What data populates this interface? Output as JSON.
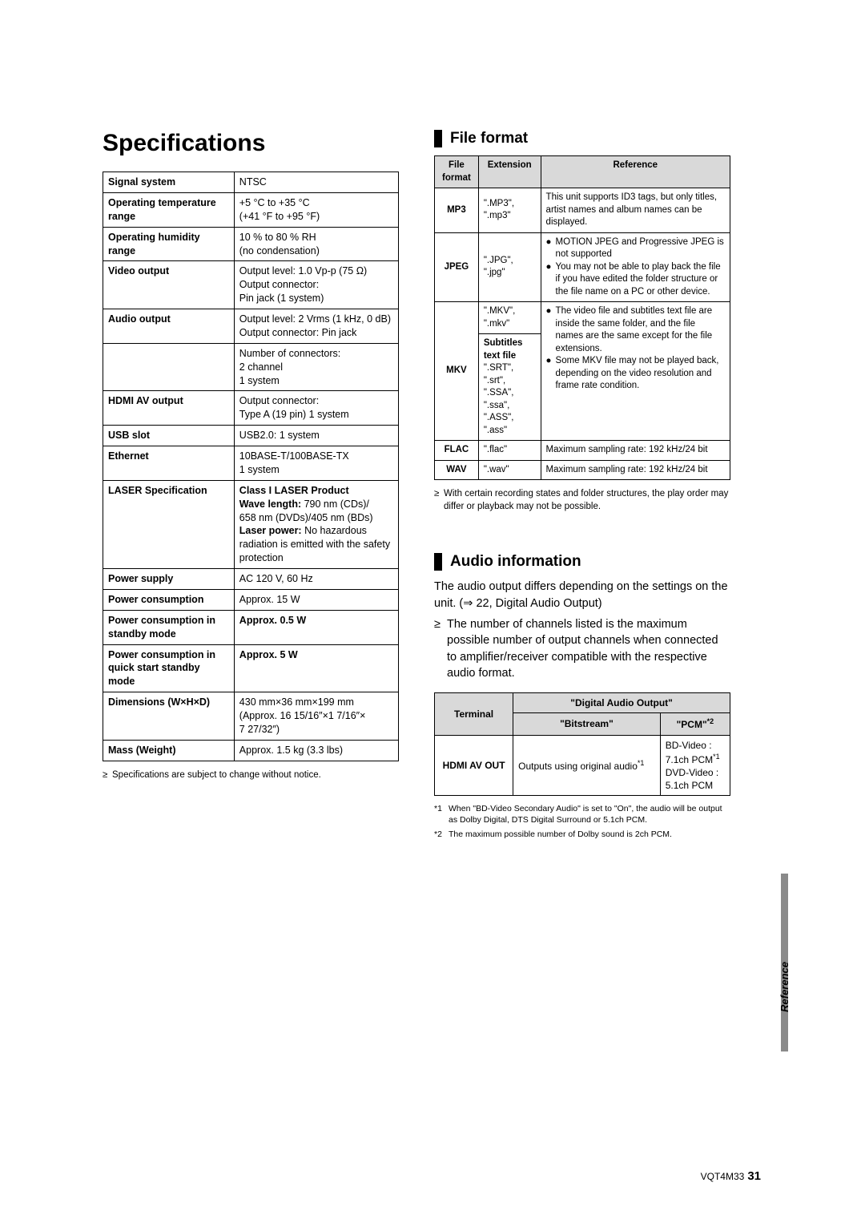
{
  "title": "Specifications",
  "spec_table": {
    "rows": [
      {
        "label": "Signal system",
        "value": "NTSC"
      },
      {
        "label": "Operating temperature range",
        "value": "+5 °C to +35 °C\n(+41 °F to +95 °F)"
      },
      {
        "label": "Operating humidity range",
        "value": "10 % to 80 % RH\n(no condensation)"
      },
      {
        "label": "Video output",
        "value": "Output level: 1.0 Vp-p (75 Ω)\nOutput connector:\nPin jack (1 system)"
      },
      {
        "label": "Audio output",
        "value": "Output level: 2 Vrms (1 kHz, 0 dB)\nOutput connector: Pin jack"
      },
      {
        "label": "",
        "value": "Number of connectors:\n2 channel\n1 system"
      },
      {
        "label": "HDMI AV output",
        "value": "Output connector:\nType A (19 pin) 1 system"
      },
      {
        "label": "USB slot",
        "value": "USB2.0: 1 system"
      },
      {
        "label": "Ethernet",
        "value": "10BASE-T/100BASE-TX\n1 system"
      },
      {
        "label": "LASER Specification",
        "value": "<b>Class I LASER Product</b>\n<b>Wave length:</b> 790 nm (CDs)/\n658 nm (DVDs)/405 nm (BDs)\n<b>Laser power:</b> No hazardous radiation is emitted with the safety protection"
      },
      {
        "label": "Power supply",
        "value": "AC 120 V, 60 Hz"
      },
      {
        "label": "Power consumption",
        "value": "Approx. 15 W"
      },
      {
        "label": "Power consumption in standby mode",
        "value": "<b>Approx. 0.5 W</b>"
      },
      {
        "label": "Power consumption in quick start standby mode",
        "value": "<b>Approx. 5 W</b>"
      },
      {
        "label": "Dimensions (W×H×D)",
        "value": "430 mm×36 mm×199 mm\n(Approx. 16 15/16″×1 7/16″×\n7 27/32″)"
      },
      {
        "label": "Mass (Weight)",
        "value": "Approx. 1.5 kg (3.3 lbs)"
      }
    ],
    "note": "Specifications are subject to change without notice."
  },
  "file_format": {
    "heading": "File format",
    "headers": [
      "File format",
      "Extension",
      "Reference"
    ],
    "rows": [
      {
        "fmt": "MP3",
        "ext": "\".MP3\", \".mp3\"",
        "ref": "This unit supports ID3 tags, but only titles, artist names and album names can be displayed."
      },
      {
        "fmt": "JPEG",
        "ext": "\".JPG\", \".jpg\"",
        "ref_bullets": [
          "MOTION JPEG and Progressive JPEG is not supported",
          "You may not be able to play back the file if you have edited the folder structure or the file name on a PC or other device."
        ]
      },
      {
        "fmt": "MKV",
        "ext1": "\".MKV\", \".mkv\"",
        "ext2": "<b>Subtitles text file</b>\n\".SRT\", \".srt\",\n\".SSA\", \".ssa\",\n\".ASS\", \".ass\"",
        "ref_bullets": [
          "The video file and subtitles text file are inside the same folder, and the file names are the same except for the file extensions.",
          "Some MKV file may not be played back, depending on the video resolution and frame rate condition."
        ]
      },
      {
        "fmt": "FLAC",
        "ext": "\".flac\"",
        "ref": "Maximum sampling rate: 192 kHz/24 bit"
      },
      {
        "fmt": "WAV",
        "ext": "\".wav\"",
        "ref": "Maximum sampling rate: 192 kHz/24 bit"
      }
    ],
    "note": "With certain recording states and folder structures, the play order may differ or playback may not be possible."
  },
  "audio_info": {
    "heading": "Audio information",
    "intro": "The audio output differs depending on the settings on the unit. (⇒ 22, Digital Audio Output)",
    "bullet": "The number of channels listed is the maximum possible number of output channels when connected to amplifier/receiver compatible with the respective audio format.",
    "table": {
      "h_terminal": "Terminal",
      "h_digital": "\"Digital Audio Output\"",
      "h_bitstream": "\"Bitstream\"",
      "h_pcm": "\"PCM\"",
      "pcm_sup": "*2",
      "row_terminal": "HDMI AV OUT",
      "row_bitstream": "Outputs using original audio",
      "row_bitstream_sup": "*1",
      "row_pcm": "BD-Video :\n7.1ch PCM*1\nDVD-Video :\n5.1ch PCM"
    },
    "footnotes": [
      {
        "sup": "*1",
        "text": "When \"BD-Video Secondary Audio\" is set to \"On\", the audio will be output as Dolby Digital, DTS Digital Surround or 5.1ch PCM."
      },
      {
        "sup": "*2",
        "text": "The maximum possible number of Dolby sound is 2ch PCM."
      }
    ]
  },
  "side_label": "Reference",
  "footer_code": "VQT4M33",
  "page_num": "31"
}
